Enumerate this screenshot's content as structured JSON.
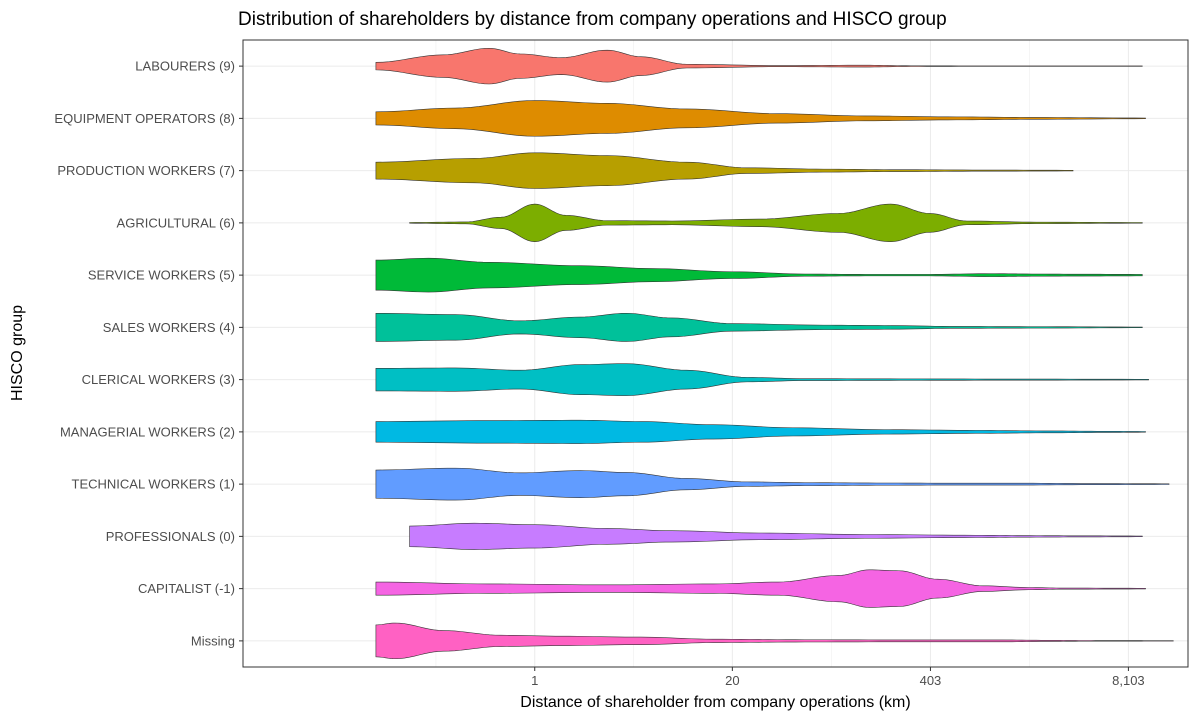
{
  "chart_data": {
    "type": "violin",
    "title": "Distribution of shareholders by distance from company operations and HISCO group",
    "xlabel": "Distance of shareholder from company operations (km)",
    "ylabel": "HISCO group",
    "x_scale": "log",
    "x_ticks": [
      {
        "value": 1,
        "label": "1"
      },
      {
        "value": 20,
        "label": "20"
      },
      {
        "value": 403,
        "label": "403"
      },
      {
        "value": 8103,
        "label": "8,103"
      }
    ],
    "xlim_km": [
      0.012,
      20000
    ],
    "categories": [
      {
        "label": "Missing",
        "color": "#FF61C3",
        "min_km": 0.09,
        "max_km": 16000,
        "density": [
          [
            0.09,
            0.85
          ],
          [
            0.12,
            0.95
          ],
          [
            0.25,
            0.55
          ],
          [
            0.6,
            0.3
          ],
          [
            1.5,
            0.25
          ],
          [
            5,
            0.2
          ],
          [
            15,
            0.09
          ],
          [
            60,
            0.06
          ],
          [
            300,
            0.05
          ],
          [
            1200,
            0.05
          ],
          [
            2500,
            0.03
          ],
          [
            4000,
            0.02
          ],
          [
            8000,
            0.015
          ],
          [
            16000,
            0.01
          ]
        ]
      },
      {
        "label": "CAPITALIST (-1)",
        "color": "#F564E3",
        "min_km": 0.09,
        "max_km": 10500,
        "density": [
          [
            0.09,
            0.35
          ],
          [
            0.5,
            0.25
          ],
          [
            3,
            0.2
          ],
          [
            15,
            0.25
          ],
          [
            40,
            0.35
          ],
          [
            100,
            0.7
          ],
          [
            160,
            1.0
          ],
          [
            250,
            0.95
          ],
          [
            450,
            0.5
          ],
          [
            900,
            0.15
          ],
          [
            1800,
            0.06
          ],
          [
            3000,
            0.03
          ],
          [
            10500,
            0.02
          ]
        ]
      },
      {
        "label": "PROFESSIONALS (0)",
        "color": "#C77CFF",
        "min_km": 0.15,
        "max_km": 10000,
        "density": [
          [
            0.15,
            0.55
          ],
          [
            0.4,
            0.7
          ],
          [
            1,
            0.62
          ],
          [
            3,
            0.42
          ],
          [
            8,
            0.3
          ],
          [
            30,
            0.18
          ],
          [
            150,
            0.1
          ],
          [
            800,
            0.06
          ],
          [
            2000,
            0.04
          ],
          [
            4000,
            0.03
          ],
          [
            10000,
            0.02
          ]
        ]
      },
      {
        "label": "TECHNICAL WORKERS (1)",
        "color": "#619CFF",
        "min_km": 0.09,
        "max_km": 15000,
        "density": [
          [
            0.09,
            0.75
          ],
          [
            0.3,
            0.85
          ],
          [
            0.8,
            0.6
          ],
          [
            2,
            0.72
          ],
          [
            4,
            0.62
          ],
          [
            10,
            0.3
          ],
          [
            25,
            0.12
          ],
          [
            60,
            0.08
          ],
          [
            200,
            0.06
          ],
          [
            600,
            0.05
          ],
          [
            1500,
            0.05
          ],
          [
            5000,
            0.03
          ],
          [
            15000,
            0.02
          ]
        ]
      },
      {
        "label": "MANAGERIAL WORKERS (2)",
        "color": "#00B9E3",
        "min_km": 0.09,
        "max_km": 10500,
        "density": [
          [
            0.09,
            0.55
          ],
          [
            0.5,
            0.6
          ],
          [
            2,
            0.62
          ],
          [
            5,
            0.55
          ],
          [
            15,
            0.38
          ],
          [
            50,
            0.22
          ],
          [
            200,
            0.12
          ],
          [
            800,
            0.08
          ],
          [
            2500,
            0.05
          ],
          [
            6000,
            0.03
          ],
          [
            10500,
            0.02
          ]
        ]
      },
      {
        "label": "CLERICAL WORKERS (3)",
        "color": "#00BFC4",
        "min_km": 0.09,
        "max_km": 11000,
        "density": [
          [
            0.09,
            0.6
          ],
          [
            0.3,
            0.62
          ],
          [
            0.8,
            0.5
          ],
          [
            2,
            0.8
          ],
          [
            4,
            0.85
          ],
          [
            10,
            0.5
          ],
          [
            25,
            0.12
          ],
          [
            60,
            0.05
          ],
          [
            300,
            0.04
          ],
          [
            1500,
            0.03
          ],
          [
            11000,
            0.02
          ]
        ]
      },
      {
        "label": "SALES WORKERS (4)",
        "color": "#00C19A",
        "min_km": 0.09,
        "max_km": 10000,
        "density": [
          [
            0.09,
            0.75
          ],
          [
            0.3,
            0.68
          ],
          [
            0.8,
            0.35
          ],
          [
            2,
            0.55
          ],
          [
            4,
            0.75
          ],
          [
            8,
            0.5
          ],
          [
            20,
            0.2
          ],
          [
            80,
            0.12
          ],
          [
            200,
            0.1
          ],
          [
            600,
            0.05
          ],
          [
            2000,
            0.04
          ],
          [
            10000,
            0.02
          ]
        ]
      },
      {
        "label": "SERVICE WORKERS (5)",
        "color": "#00BA38",
        "min_km": 0.09,
        "max_km": 10000,
        "density": [
          [
            0.09,
            0.8
          ],
          [
            0.2,
            0.9
          ],
          [
            0.5,
            0.68
          ],
          [
            2,
            0.5
          ],
          [
            6,
            0.35
          ],
          [
            20,
            0.18
          ],
          [
            60,
            0.06
          ],
          [
            150,
            0.04
          ],
          [
            400,
            0.04
          ],
          [
            1000,
            0.08
          ],
          [
            2000,
            0.06
          ],
          [
            4000,
            0.05
          ],
          [
            10000,
            0.04
          ]
        ]
      },
      {
        "label": "AGRICULTURAL (6)",
        "color": "#7CAE00",
        "min_km": 0.15,
        "max_km": 10000,
        "density": [
          [
            0.15,
            0.02
          ],
          [
            0.35,
            0.05
          ],
          [
            0.6,
            0.3
          ],
          [
            1,
            1.0
          ],
          [
            1.6,
            0.4
          ],
          [
            3,
            0.12
          ],
          [
            8,
            0.1
          ],
          [
            30,
            0.2
          ],
          [
            100,
            0.5
          ],
          [
            220,
            1.0
          ],
          [
            400,
            0.5
          ],
          [
            700,
            0.1
          ],
          [
            2000,
            0.04
          ],
          [
            10000,
            0.02
          ]
        ]
      },
      {
        "label": "PRODUCTION WORKERS (7)",
        "color": "#B79F00",
        "min_km": 0.09,
        "max_km": 3500,
        "density": [
          [
            0.09,
            0.45
          ],
          [
            0.4,
            0.65
          ],
          [
            1,
            0.95
          ],
          [
            3,
            0.8
          ],
          [
            10,
            0.45
          ],
          [
            25,
            0.15
          ],
          [
            80,
            0.08
          ],
          [
            250,
            0.05
          ],
          [
            1000,
            0.03
          ],
          [
            3500,
            0.02
          ]
        ]
      },
      {
        "label": "EQUIPMENT OPERATORS (8)",
        "color": "#DE8C00",
        "min_km": 0.09,
        "max_km": 10500,
        "density": [
          [
            0.09,
            0.35
          ],
          [
            0.3,
            0.55
          ],
          [
            1,
            0.95
          ],
          [
            3,
            0.8
          ],
          [
            10,
            0.5
          ],
          [
            40,
            0.25
          ],
          [
            150,
            0.13
          ],
          [
            600,
            0.08
          ],
          [
            2000,
            0.05
          ],
          [
            10500,
            0.02
          ]
        ]
      },
      {
        "label": "LABOURERS (9)",
        "color": "#F8766D",
        "min_km": 0.09,
        "max_km": 10000,
        "density": [
          [
            0.09,
            0.2
          ],
          [
            0.25,
            0.6
          ],
          [
            0.5,
            0.95
          ],
          [
            0.8,
            0.65
          ],
          [
            1.5,
            0.45
          ],
          [
            3,
            0.85
          ],
          [
            5,
            0.5
          ],
          [
            10,
            0.1
          ],
          [
            40,
            0.03
          ],
          [
            150,
            0.05
          ],
          [
            300,
            0.02
          ],
          [
            1000,
            0.01
          ],
          [
            10000,
            0.01
          ]
        ]
      }
    ]
  }
}
